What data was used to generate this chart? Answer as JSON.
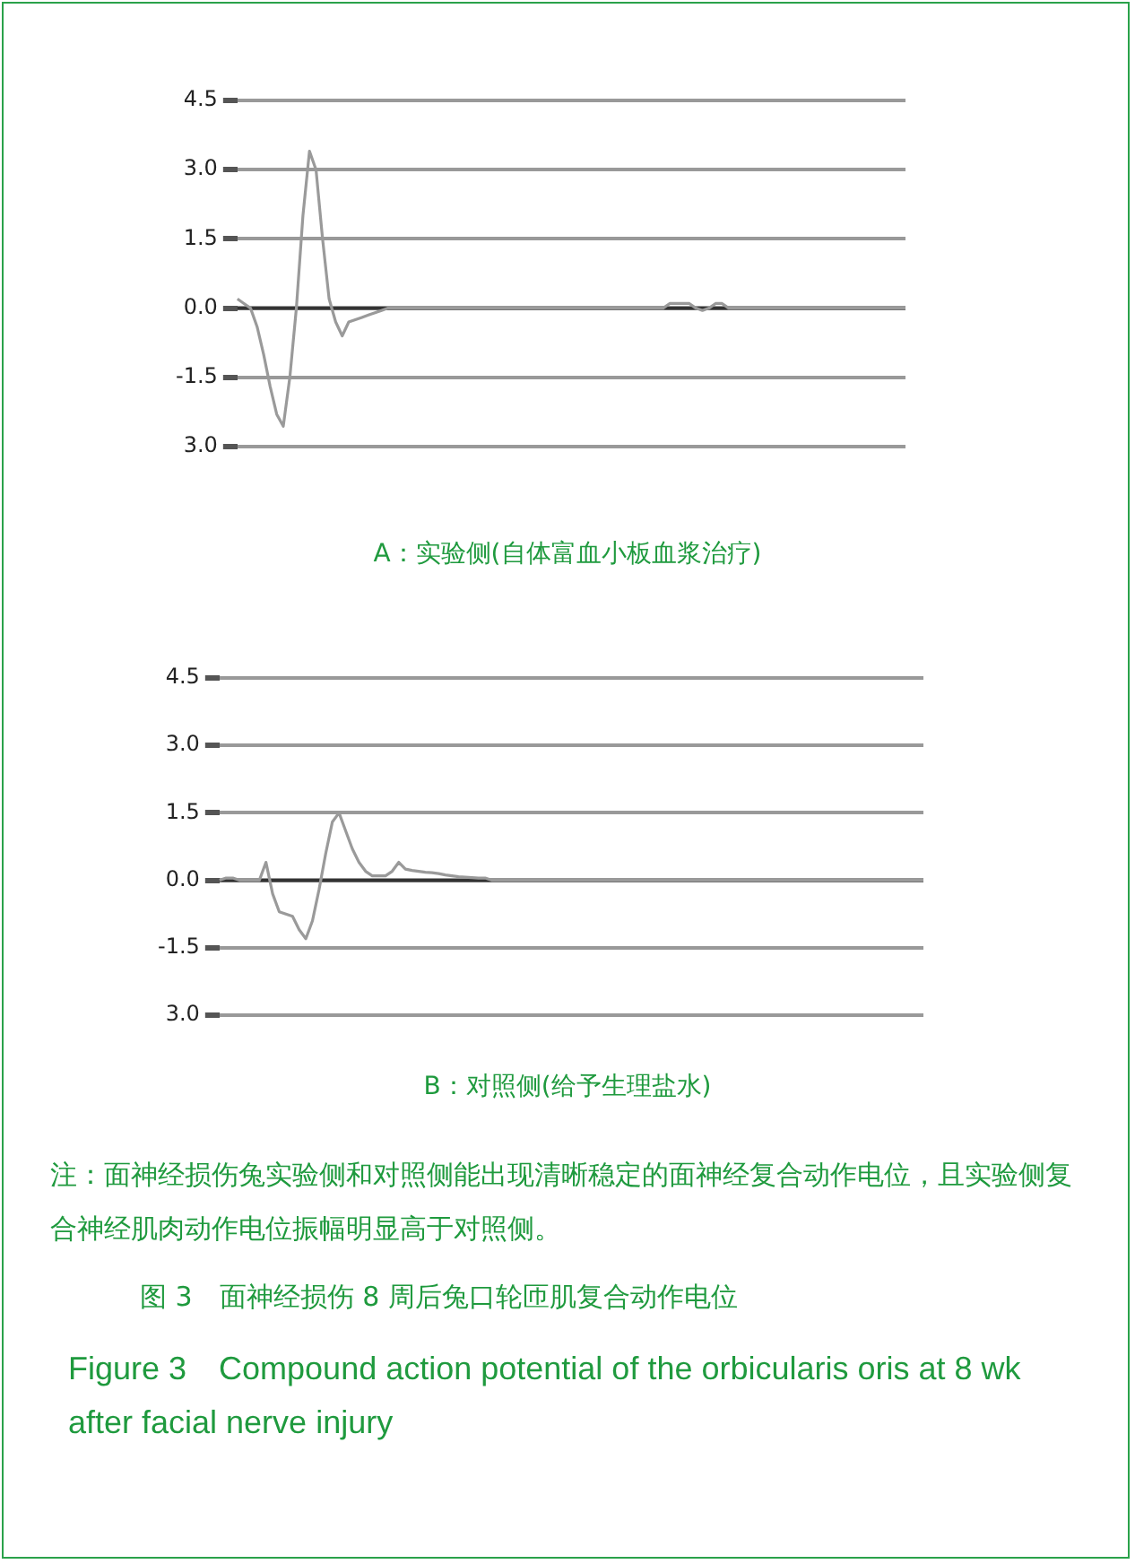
{
  "chart_data": [
    {
      "type": "line",
      "title": "A：实验侧(自体富血小板血浆治疗)",
      "tick_labels": "y",
      "grid": "y",
      "legend": false,
      "marker": "none",
      "line_style": "solid",
      "categories": [
        null,
        null,
        null,
        null,
        null,
        null,
        null,
        null,
        null,
        null,
        null,
        null,
        null,
        null,
        null,
        null,
        null,
        null,
        null,
        null,
        null,
        null,
        null,
        null,
        null,
        null,
        null,
        null,
        null,
        null,
        null,
        null,
        null,
        null,
        null,
        null,
        null,
        null,
        null,
        null,
        null,
        null,
        null,
        null,
        null,
        null,
        null,
        null,
        null,
        null,
        null,
        null,
        null,
        null,
        null,
        null,
        null,
        null,
        null,
        null,
        null,
        null,
        null,
        null,
        null,
        null,
        null,
        null,
        null,
        null,
        null,
        null,
        null,
        null,
        null,
        null,
        null,
        null,
        null,
        null,
        null,
        null,
        null,
        null,
        null,
        null,
        null,
        null,
        null,
        null,
        null,
        null,
        null,
        null,
        null,
        null,
        null,
        null,
        null,
        null,
        null,
        null,
        null
      ],
      "series": [
        {
          "color": "#9a9a9a",
          "values": [
            0.2,
            0.1,
            0,
            -0.4,
            -1.0,
            -1.7,
            -2.3,
            -2.56,
            -1.5,
            0,
            2.0,
            3.4,
            3.0,
            1.5,
            0.2,
            -0.3,
            -0.6,
            -0.3,
            -0.25,
            -0.2,
            -0.15,
            -0.1,
            -0.05,
            0,
            0,
            0,
            0,
            0,
            0,
            0,
            0,
            0,
            0,
            0,
            0,
            0,
            0,
            0,
            0,
            0,
            0,
            0,
            0,
            0,
            0,
            0,
            0,
            0,
            0,
            0,
            0,
            0,
            0,
            0,
            0,
            0,
            0,
            0,
            0,
            0,
            0,
            0,
            0,
            0,
            0,
            0,
            0.1,
            0.1,
            0.1,
            0.1,
            0,
            -0.05,
            0,
            0.1,
            0.1,
            0,
            0,
            0,
            0,
            0,
            0,
            0,
            0,
            0,
            0,
            0,
            0,
            0,
            0,
            0,
            0,
            0,
            0,
            0,
            0,
            0,
            0,
            0,
            0,
            0,
            0,
            0,
            0
          ]
        }
      ],
      "ref_lines": [
        {
          "axis": "y",
          "value": 0,
          "color": "#333333"
        }
      ],
      "ylim": [
        -3,
        4.5
      ],
      "yticks": [
        4.5,
        {
          "value": 3,
          "label": "3.0"
        },
        1.5,
        {
          "value": 0,
          "label": "0.0"
        },
        -1.5,
        {
          "value": -3,
          "label": "3.0"
        }
      ]
    },
    {
      "type": "line",
      "title": "B：对照侧(给予生理盐水)",
      "tick_labels": "y",
      "grid": "y",
      "legend": false,
      "marker": "none",
      "line_style": "solid",
      "categories": [
        null,
        null,
        null,
        null,
        null,
        null,
        null,
        null,
        null,
        null,
        null,
        null,
        null,
        null,
        null,
        null,
        null,
        null,
        null,
        null,
        null,
        null,
        null,
        null,
        null,
        null,
        null,
        null,
        null,
        null,
        null,
        null,
        null,
        null,
        null,
        null,
        null,
        null,
        null,
        null,
        null,
        null,
        null,
        null,
        null,
        null,
        null,
        null,
        null,
        null,
        null,
        null,
        null,
        null,
        null,
        null,
        null,
        null,
        null,
        null,
        null,
        null,
        null,
        null,
        null,
        null,
        null,
        null,
        null,
        null,
        null,
        null,
        null,
        null,
        null,
        null,
        null,
        null,
        null,
        null,
        null,
        null,
        null,
        null,
        null,
        null,
        null,
        null,
        null,
        null,
        null,
        null,
        null,
        null,
        null,
        null,
        null,
        null,
        null,
        null,
        null,
        null,
        null,
        null,
        null,
        null,
        null
      ],
      "series": [
        {
          "color": "#9a9a9a",
          "values": [
            0,
            0.05,
            0.05,
            0,
            0,
            0,
            0,
            0.4,
            -0.3,
            -0.7,
            -0.75,
            -0.8,
            -1.1,
            -1.3,
            -0.9,
            -0.2,
            0.6,
            1.3,
            1.5,
            1.1,
            0.7,
            0.4,
            0.2,
            0.1,
            0.1,
            0.1,
            0.2,
            0.4,
            0.25,
            0.22,
            0.2,
            0.18,
            0.17,
            0.15,
            0.12,
            0.1,
            0.08,
            0.07,
            0.06,
            0.05,
            0.05,
            0,
            0,
            0,
            0,
            0,
            0,
            0,
            0,
            0,
            0,
            0,
            0,
            0,
            0,
            0,
            0,
            0,
            0,
            0,
            0,
            0,
            0,
            0,
            0,
            0,
            0,
            0,
            0,
            0,
            0,
            0,
            0,
            0,
            0,
            0,
            0,
            0,
            0,
            0,
            0,
            0,
            0,
            0,
            0,
            0,
            0,
            0,
            0,
            0,
            0,
            0,
            0,
            0,
            0,
            0,
            0,
            0,
            0,
            0,
            0,
            0,
            0,
            0,
            0,
            0,
            0
          ]
        }
      ],
      "ref_lines": [
        {
          "axis": "y",
          "value": 0,
          "color": "#333333"
        }
      ],
      "ylim": [
        -3,
        4.5
      ],
      "yticks": [
        4.5,
        {
          "value": 3,
          "label": "3.0"
        },
        1.5,
        {
          "value": 0,
          "label": "0.0"
        },
        -1.5,
        {
          "value": -3,
          "label": "3.0"
        }
      ],
      "annotations": [
        "注：面神经损伤兔实验侧和对照侧能出现清晰稳定的面神经复合动作电位，且实验侧复合神经肌肉动作电位振幅明显高于对照侧。",
        "图 3　面神经损伤 8 周后兔口轮匝肌复合动作电位",
        "Figure 3　Compound action potential of the orbicularis oris at 8 wk after facial nerve injury"
      ]
    }
  ]
}
